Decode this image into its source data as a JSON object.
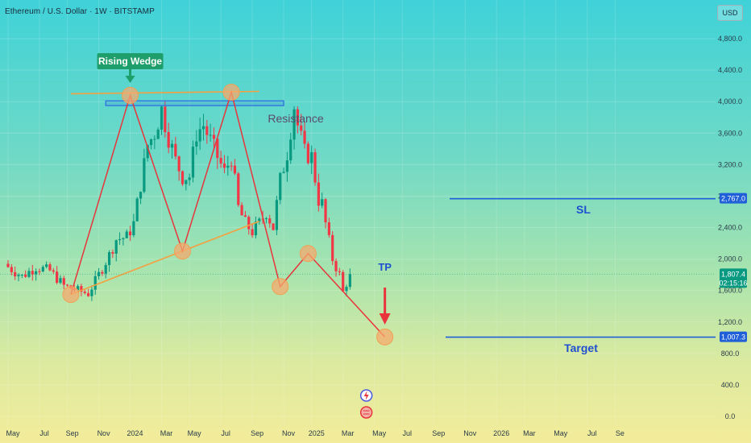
{
  "header": {
    "symbol_title": "Ethereum / U.S. Dollar · 1W · BITSTAMP",
    "currency_button": "USD"
  },
  "colors": {
    "bull": "#089981",
    "bear": "#f23645",
    "pattern": "#e8343a",
    "trendline": "#f5a040",
    "resistance_box": "#2f6fe0",
    "level_line": "#1f5fd8",
    "wedge_label_bg": "#1e9e6a",
    "label_blue": "#1f4fd0",
    "resistance_text": "#5a4a6a"
  },
  "annotations": {
    "rising_wedge": "Rising Wedge",
    "resistance": "Resistance",
    "sl": "SL",
    "tp": "TP",
    "target": "Target"
  },
  "price_tags": {
    "sl": "2,767.0",
    "current": "1,807.4",
    "countdown": "02:15:16",
    "target": "1,007.3"
  },
  "chart_data": {
    "type": "candlestick",
    "symbol": "Ethereum / U.S. Dollar",
    "interval": "1W",
    "exchange": "BITSTAMP",
    "y_axis": {
      "ticks": [
        "0.0",
        "400.0",
        "800.0",
        "1,200.0",
        "1,600.0",
        "2,000.0",
        "2,400.0",
        "2,800.0",
        "3,200.0",
        "3,600.0",
        "4,000.0",
        "4,400.0",
        "4,800.0"
      ],
      "tick_values": [
        0,
        400,
        800,
        1200,
        1600,
        2000,
        2400,
        2800,
        3200,
        3600,
        4000,
        4400,
        4800
      ],
      "range": [
        -100,
        5300
      ]
    },
    "x_axis": {
      "labels": [
        "May",
        "Jul",
        "Sep",
        "Nov",
        "2024",
        "Mar",
        "May",
        "Jul",
        "Sep",
        "Nov",
        "2025",
        "Mar",
        "May",
        "Jul",
        "Sep",
        "Nov",
        "2026",
        "Mar",
        "May",
        "Jul",
        "Se"
      ],
      "label_week_index": [
        0,
        9,
        17,
        26,
        35,
        44,
        52,
        61,
        70,
        79,
        87,
        96,
        105,
        113,
        122,
        131,
        140,
        148,
        157,
        166,
        174
      ],
      "first_label_date": "2023-05-01",
      "last_week_index": 176
    },
    "candles_anchor_closes": [
      {
        "w": 0,
        "c": 1900
      },
      {
        "w": 4,
        "c": 1780
      },
      {
        "w": 8,
        "c": 1900
      },
      {
        "w": 12,
        "c": 1850
      },
      {
        "w": 16,
        "c": 1660
      },
      {
        "w": 20,
        "c": 1600
      },
      {
        "w": 23,
        "c": 1560
      },
      {
        "w": 26,
        "c": 1800
      },
      {
        "w": 29,
        "c": 2050
      },
      {
        "w": 31,
        "c": 2250
      },
      {
        "w": 34,
        "c": 2280
      },
      {
        "w": 36,
        "c": 2450
      },
      {
        "w": 38,
        "c": 2950
      },
      {
        "w": 40,
        "c": 3450
      },
      {
        "w": 42,
        "c": 3600
      },
      {
        "w": 44,
        "c": 3900
      },
      {
        "w": 46,
        "c": 3550
      },
      {
        "w": 48,
        "c": 3250
      },
      {
        "w": 50,
        "c": 3050
      },
      {
        "w": 52,
        "c": 3050
      },
      {
        "w": 54,
        "c": 3600
      },
      {
        "w": 56,
        "c": 3700
      },
      {
        "w": 58,
        "c": 3500
      },
      {
        "w": 60,
        "c": 3300
      },
      {
        "w": 62,
        "c": 3100
      },
      {
        "w": 64,
        "c": 3300
      },
      {
        "w": 66,
        "c": 2650
      },
      {
        "w": 68,
        "c": 2450
      },
      {
        "w": 70,
        "c": 2350
      },
      {
        "w": 72,
        "c": 2450
      },
      {
        "w": 74,
        "c": 2600
      },
      {
        "w": 76,
        "c": 2400
      },
      {
        "w": 78,
        "c": 3000
      },
      {
        "w": 80,
        "c": 3350
      },
      {
        "w": 82,
        "c": 3950
      },
      {
        "w": 83,
        "c": 3700
      },
      {
        "w": 85,
        "c": 3350
      },
      {
        "w": 87,
        "c": 3300
      },
      {
        "w": 89,
        "c": 2750
      },
      {
        "w": 90,
        "c": 2700
      },
      {
        "w": 91,
        "c": 2450
      },
      {
        "w": 93,
        "c": 2000
      },
      {
        "w": 95,
        "c": 1800
      },
      {
        "w": 96,
        "c": 1580
      },
      {
        "w": 98,
        "c": 1807
      }
    ],
    "levels": {
      "sl": 2767.0,
      "target": 1007.3,
      "current": 1807.4
    },
    "wedge_pattern_points": [
      {
        "w": 18,
        "p": 1550
      },
      {
        "w": 35,
        "p": 4080
      },
      {
        "w": 50,
        "p": 2100
      },
      {
        "w": 64,
        "p": 4120
      },
      {
        "w": 78,
        "p": 1650
      },
      {
        "w": 86,
        "p": 2070
      },
      {
        "w": 108,
        "p": 1010
      }
    ],
    "top_trendline": [
      {
        "w": 18,
        "p": 4100
      },
      {
        "w": 72,
        "p": 4130
      }
    ],
    "bottom_trendline": [
      {
        "w": 18,
        "p": 1550
      },
      {
        "w": 72,
        "p": 2480
      }
    ],
    "resistance_zone": {
      "w_start": 28,
      "w_end": 79,
      "p_low": 3950,
      "p_high": 4010
    }
  }
}
